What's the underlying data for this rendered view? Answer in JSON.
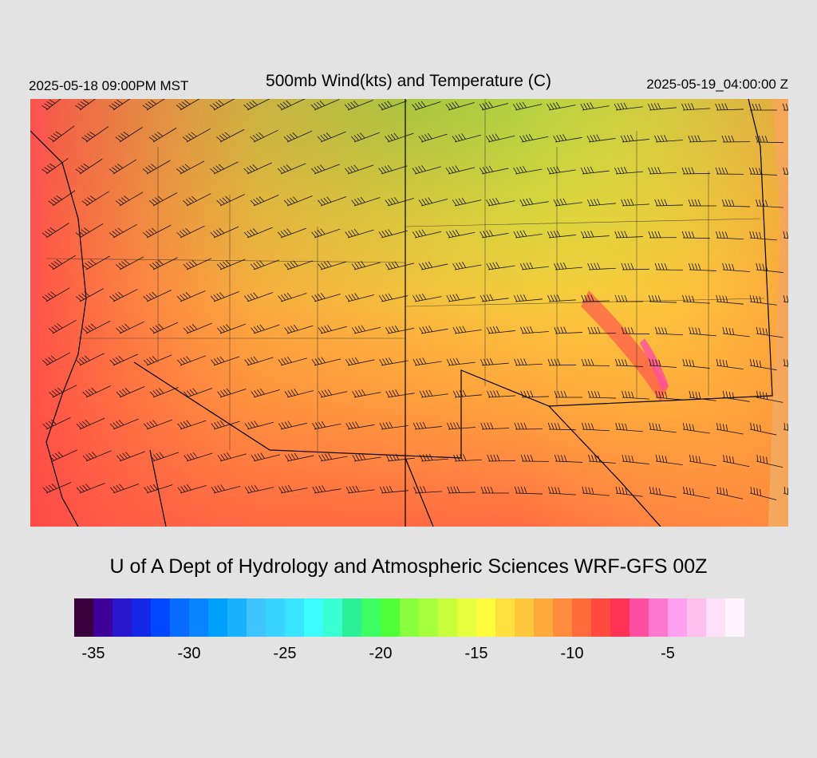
{
  "header": {
    "valid_local": "2025-05-18 09:00PM MST",
    "title": "500mb Wind(kts) and Temperature (C)",
    "valid_utc": "2025-05-19_04:00:00 Z"
  },
  "footer": {
    "credit": "U of A Dept of Hydrology and Atmospheric Sciences WRF-GFS 00Z"
  },
  "colorbar": {
    "colors": [
      "#3a003d",
      "#40009a",
      "#2a16cc",
      "#1426e6",
      "#0047ff",
      "#0a6cff",
      "#0a84ff",
      "#00a0ff",
      "#1ab2ff",
      "#40c4ff",
      "#3ad2ff",
      "#38e4ff",
      "#3cfcfe",
      "#39ffd2",
      "#2cf098",
      "#3cff64",
      "#4eff3a",
      "#8aff3c",
      "#a6ff3c",
      "#c8ff3c",
      "#e6ff3e",
      "#fefc3c",
      "#ffe03c",
      "#ffc83c",
      "#ffaa3c",
      "#ff8c3c",
      "#ff6a3c",
      "#ff4a40",
      "#ff3255",
      "#ff4fa0",
      "#ff78d0",
      "#ffa0f0",
      "#ffc0ee",
      "#ffe0f8",
      "#fff4fc"
    ],
    "tick_labels": [
      "-35",
      "-30",
      "-25",
      "-20",
      "-15",
      "-10",
      "-5"
    ],
    "tick_values": [
      -35,
      -30,
      -25,
      -20,
      -15,
      -10,
      -5
    ],
    "min": -36,
    "max": -1
  }
}
